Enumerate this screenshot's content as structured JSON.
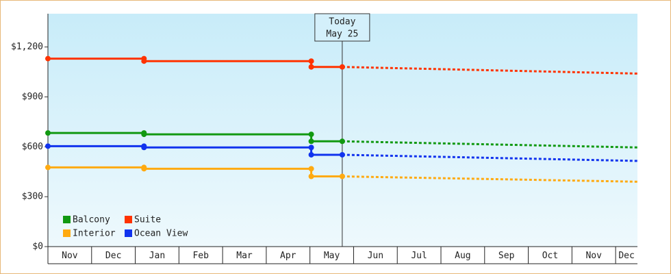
{
  "chart_data": {
    "type": "line",
    "categories": [
      "Nov",
      "Dec",
      "Jan",
      "Feb",
      "Mar",
      "Apr",
      "May",
      "Jun",
      "Jul",
      "Aug",
      "Sep",
      "Oct",
      "Nov",
      "Dec"
    ],
    "x": [
      0,
      2.2,
      2.2,
      6.03,
      6.03,
      6.74
    ],
    "forecast_x": [
      6.74,
      13.5
    ],
    "xlim": [
      0,
      13.5
    ],
    "ylim": [
      0,
      1400
    ],
    "yticks": [
      {
        "value": 0,
        "label": "$0"
      },
      {
        "value": 300,
        "label": "$300"
      },
      {
        "value": 600,
        "label": "$600"
      },
      {
        "value": 900,
        "label": "$900"
      },
      {
        "value": 1200,
        "label": "$1,200"
      }
    ],
    "annotation": {
      "x": 6.74,
      "lines": [
        "Today",
        "May 25"
      ]
    },
    "legend": "lower left",
    "series": [
      {
        "name": "Balcony",
        "color": "#119911",
        "values": [
          683,
          683,
          675,
          675,
          633,
          633
        ],
        "forecast": [
          633,
          596
        ]
      },
      {
        "name": "Suite",
        "color": "#ff3300",
        "values": [
          1130,
          1130,
          1115,
          1115,
          1080,
          1080
        ],
        "forecast": [
          1080,
          1040
        ]
      },
      {
        "name": "Interior",
        "color": "#ffaa11",
        "values": [
          476,
          476,
          468,
          468,
          422,
          422
        ],
        "forecast": [
          422,
          390
        ]
      },
      {
        "name": "Ocean View",
        "color": "#1133ee",
        "values": [
          604,
          604,
          596,
          596,
          552,
          552
        ],
        "forecast": [
          552,
          515
        ]
      }
    ]
  }
}
